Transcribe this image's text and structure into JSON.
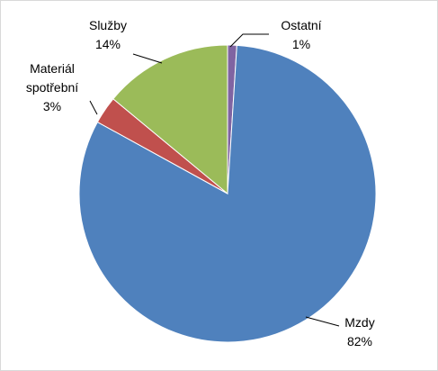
{
  "chart_data": {
    "type": "pie",
    "categories": [
      "Ostatní",
      "Mzdy",
      "Materiál spotřební",
      "Služby"
    ],
    "values": [
      1,
      82,
      3,
      14
    ],
    "value_labels": [
      "1%",
      "82%",
      "3%",
      "14%"
    ],
    "colors": [
      "#8064a2",
      "#4f81bd",
      "#c0504d",
      "#9bbb59"
    ]
  }
}
